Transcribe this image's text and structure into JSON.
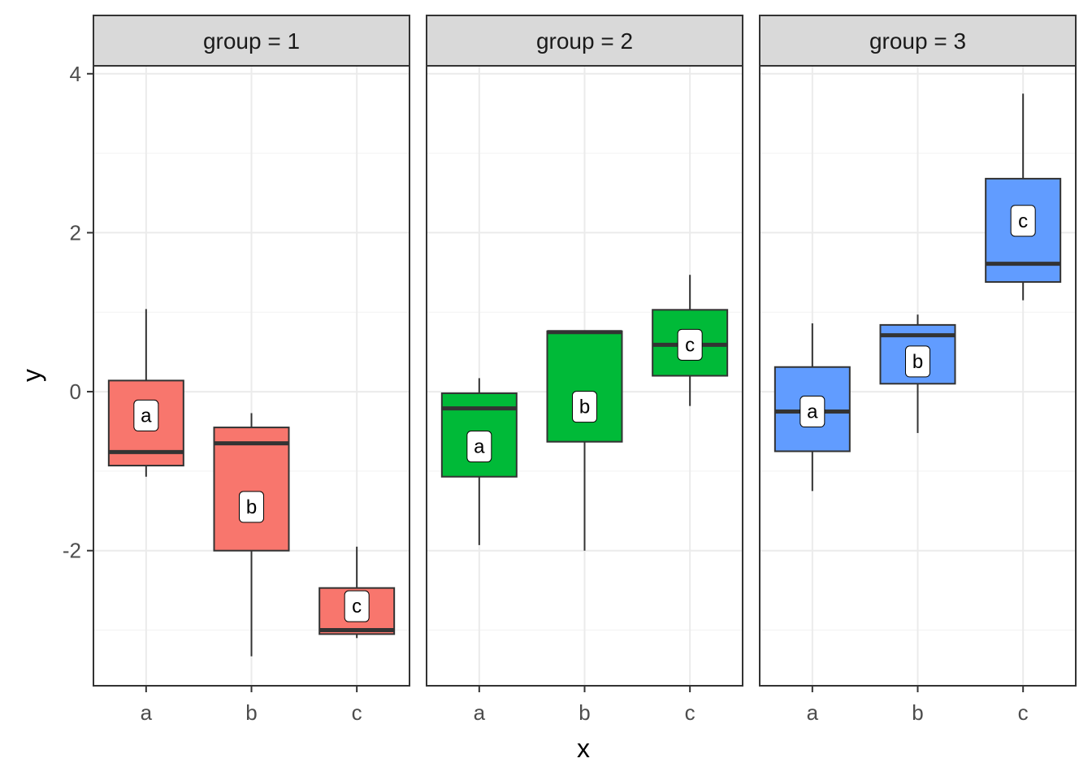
{
  "chart_data": {
    "type": "boxplot",
    "xlabel": "x",
    "ylabel": "y",
    "ylim": [
      -3.7,
      4.1
    ],
    "y_ticks": [
      -2,
      0,
      2,
      4
    ],
    "y_tick_labels": [
      "-2",
      "0",
      "2",
      "4"
    ],
    "categories": [
      "a",
      "b",
      "c"
    ],
    "grid": true,
    "legend": "none",
    "facets": [
      {
        "strip": "group = 1",
        "color": "#F8766D",
        "boxes": [
          {
            "x": "a",
            "label": "a",
            "whisker_low": -1.07,
            "q1": -0.93,
            "median": -0.76,
            "q3": 0.14,
            "whisker_high": 1.04,
            "label_y": -0.3
          },
          {
            "x": "b",
            "label": "b",
            "whisker_low": -3.33,
            "q1": -2.0,
            "median": -0.65,
            "q3": -0.45,
            "whisker_high": -0.27,
            "label_y": -1.45
          },
          {
            "x": "c",
            "label": "c",
            "whisker_low": -3.1,
            "q1": -3.05,
            "median": -3.0,
            "q3": -2.47,
            "whisker_high": -1.95,
            "label_y": -2.7
          }
        ]
      },
      {
        "strip": "group = 2",
        "color": "#00BA38",
        "boxes": [
          {
            "x": "a",
            "label": "a",
            "whisker_low": -1.93,
            "q1": -1.07,
            "median": -0.21,
            "q3": -0.02,
            "whisker_high": 0.17,
            "label_y": -0.69
          },
          {
            "x": "b",
            "label": "b",
            "whisker_low": -2.0,
            "q1": -0.63,
            "median": 0.75,
            "q3": 0.76,
            "whisker_high": 0.76,
            "label_y": -0.19
          },
          {
            "x": "c",
            "label": "c",
            "whisker_low": -0.18,
            "q1": 0.2,
            "median": 0.59,
            "q3": 1.03,
            "whisker_high": 1.47,
            "label_y": 0.59
          }
        ]
      },
      {
        "strip": "group = 3",
        "color": "#619CFF",
        "boxes": [
          {
            "x": "a",
            "label": "a",
            "whisker_low": -1.25,
            "q1": -0.75,
            "median": -0.25,
            "q3": 0.31,
            "whisker_high": 0.86,
            "label_y": -0.25
          },
          {
            "x": "b",
            "label": "b",
            "whisker_low": -0.52,
            "q1": 0.1,
            "median": 0.71,
            "q3": 0.84,
            "whisker_high": 0.97,
            "label_y": 0.38
          },
          {
            "x": "c",
            "label": "c",
            "whisker_low": 1.15,
            "q1": 1.38,
            "median": 1.61,
            "q3": 2.68,
            "whisker_high": 3.75,
            "label_y": 2.15
          }
        ]
      }
    ]
  }
}
